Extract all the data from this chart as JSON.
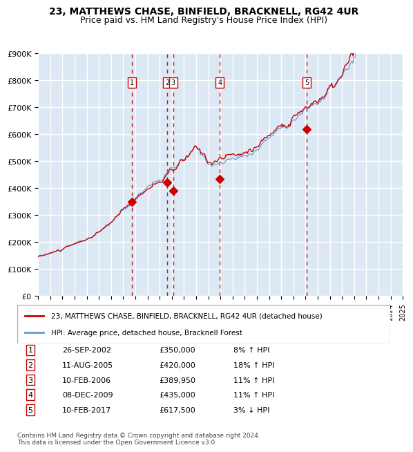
{
  "title": "23, MATTHEWS CHASE, BINFIELD, BRACKNELL, RG42 4UR",
  "subtitle": "Price paid vs. HM Land Registry's House Price Index (HPI)",
  "background_color": "#dce9f5",
  "plot_bg_color": "#dce9f5",
  "grid_color": "#ffffff",
  "red_line_color": "#cc0000",
  "blue_line_color": "#6699cc",
  "marker_color": "#cc0000",
  "dashed_line_color": "#cc0000",
  "y_max": 900000,
  "y_min": 0,
  "y_ticks": [
    0,
    100000,
    200000,
    300000,
    400000,
    500000,
    600000,
    700000,
    800000,
    900000
  ],
  "y_tick_labels": [
    "£0",
    "£100K",
    "£200K",
    "£300K",
    "£400K",
    "£500K",
    "£600K",
    "£700K",
    "£800K",
    "£900K"
  ],
  "x_start_year": 1995,
  "x_end_year": 2025,
  "sales": [
    {
      "num": 1,
      "year": 2002.73,
      "price": 350000,
      "label": "26-SEP-2002",
      "pct": "8%",
      "dir": "↑"
    },
    {
      "num": 2,
      "year": 2005.61,
      "price": 420000,
      "label": "11-AUG-2005",
      "pct": "18%",
      "dir": "↑"
    },
    {
      "num": 3,
      "year": 2006.11,
      "price": 389950,
      "label": "10-FEB-2006",
      "pct": "11%",
      "dir": "↑"
    },
    {
      "num": 4,
      "year": 2009.94,
      "price": 435000,
      "label": "08-DEC-2009",
      "pct": "11%",
      "dir": "↑"
    },
    {
      "num": 5,
      "year": 2017.11,
      "price": 617500,
      "label": "10-FEB-2017",
      "pct": "3%",
      "dir": "↓"
    }
  ],
  "legend_entries": [
    {
      "color": "#cc0000",
      "label": "23, MATTHEWS CHASE, BINFIELD, BRACKNELL, RG42 4UR (detached house)"
    },
    {
      "color": "#6699cc",
      "label": "HPI: Average price, detached house, Bracknell Forest"
    }
  ],
  "table_rows": [
    {
      "num": 1,
      "date": "26-SEP-2002",
      "price": "£350,000",
      "pct": "8% ↑ HPI"
    },
    {
      "num": 2,
      "date": "11-AUG-2005",
      "price": "£420,000",
      "pct": "18% ↑ HPI"
    },
    {
      "num": 3,
      "date": "10-FEB-2006",
      "price": "£389,950",
      "pct": "11% ↑ HPI"
    },
    {
      "num": 4,
      "date": "08-DEC-2009",
      "price": "£435,000",
      "pct": "11% ↑ HPI"
    },
    {
      "num": 5,
      "date": "10-FEB-2017",
      "price": "£617,500",
      "pct": "3% ↓ HPI"
    }
  ],
  "footer": "Contains HM Land Registry data © Crown copyright and database right 2024.\nThis data is licensed under the Open Government Licence v3.0."
}
